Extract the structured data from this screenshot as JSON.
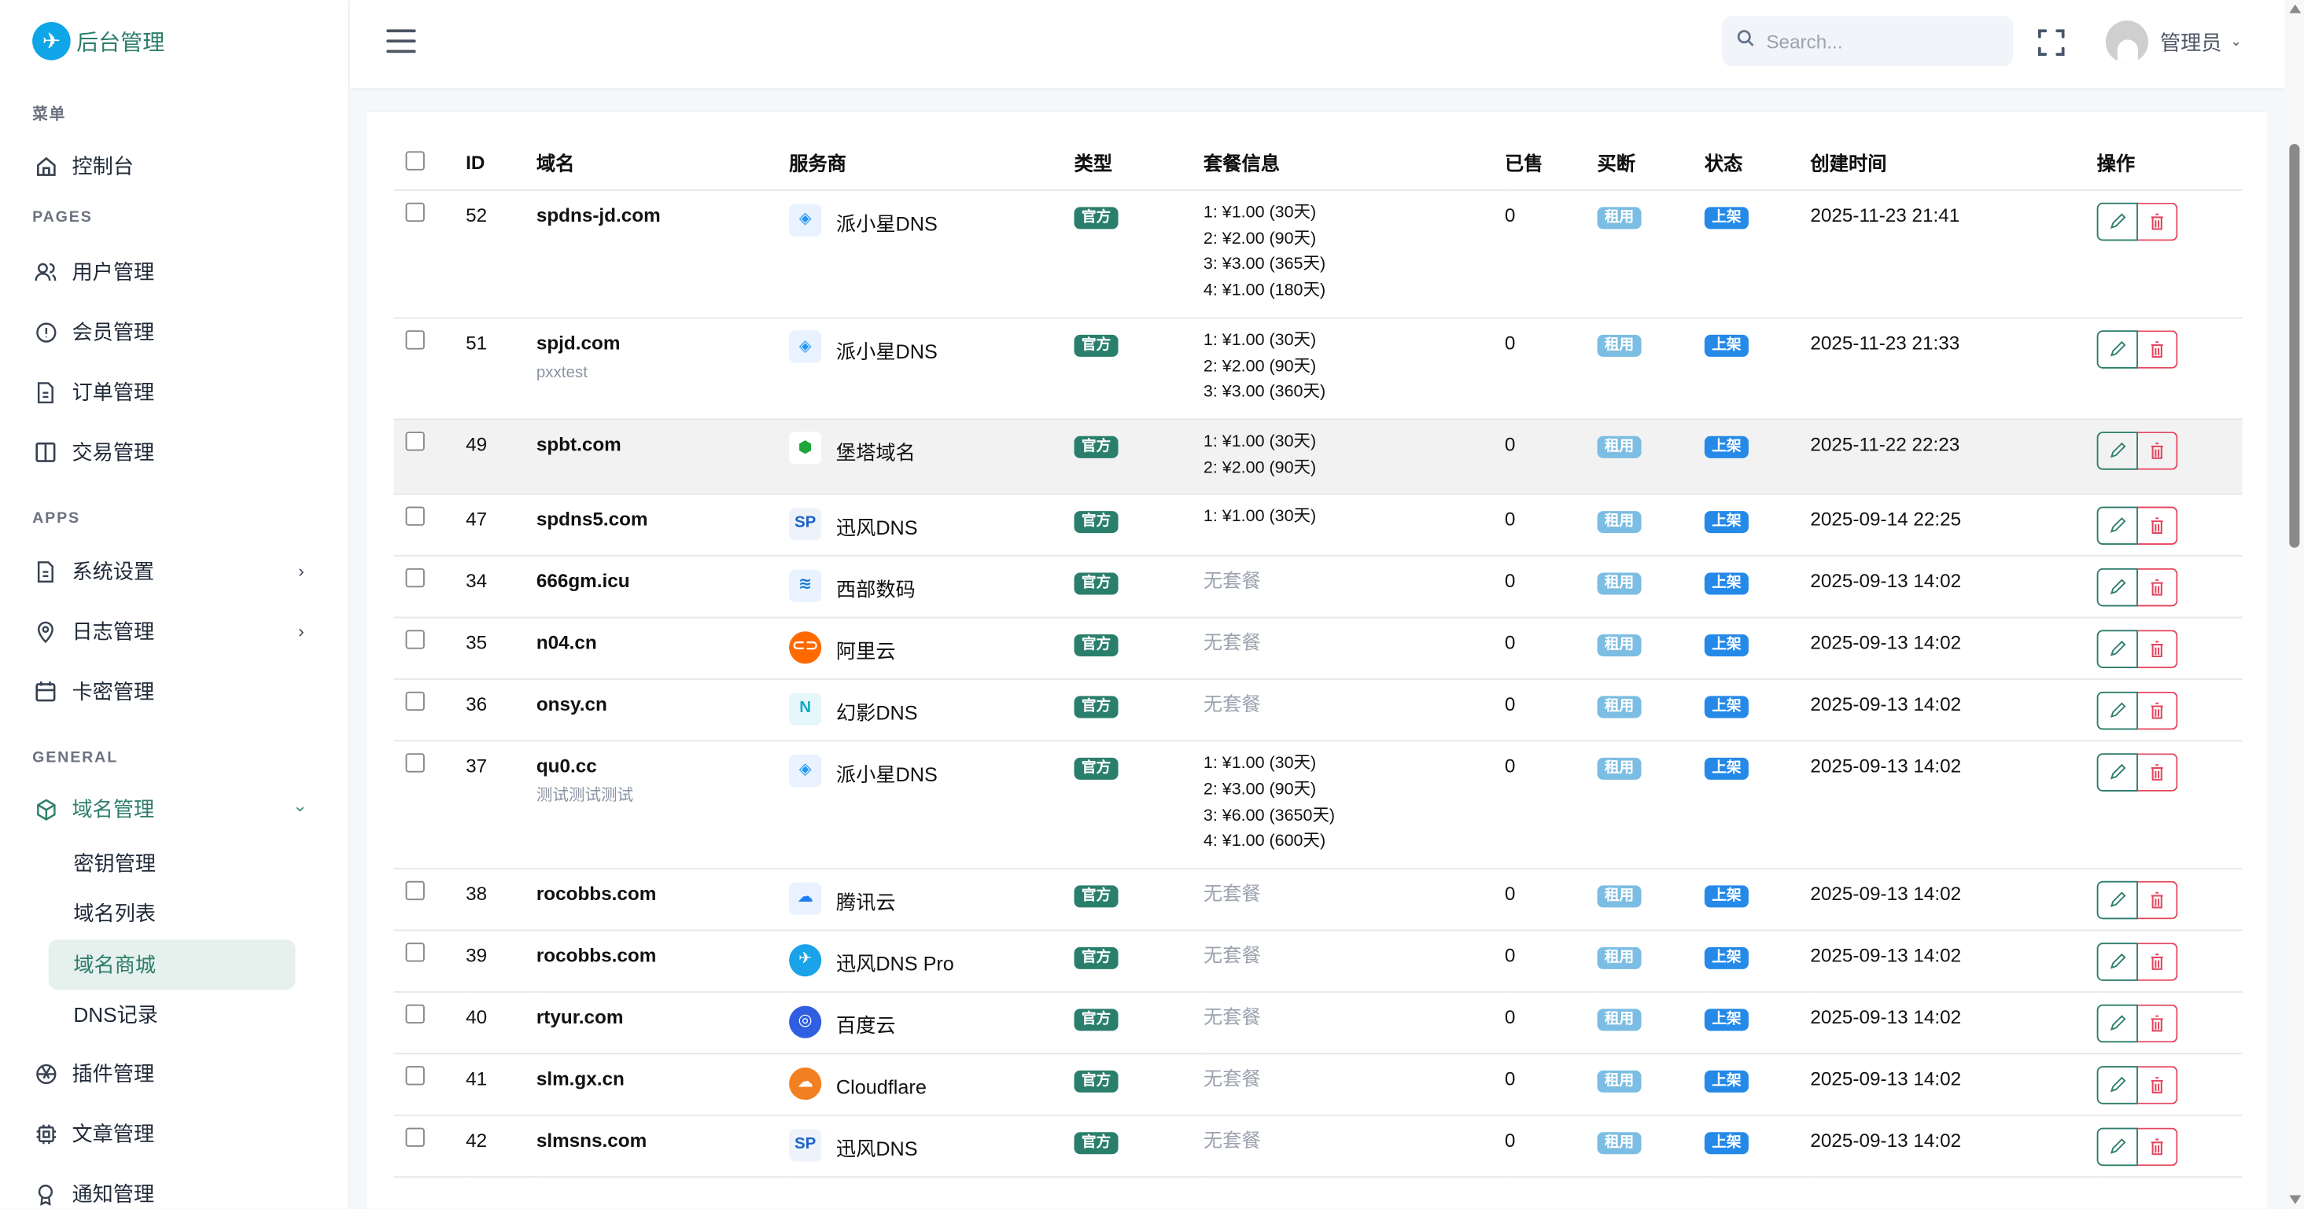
{
  "app": {
    "title": "后台管理"
  },
  "sidebar": {
    "section_menu": "菜单",
    "dashboard": "控制台",
    "section_pages": "PAGES",
    "users": "用户管理",
    "members": "会员管理",
    "orders": "订单管理",
    "trades": "交易管理",
    "section_apps": "APPS",
    "settings": "系统设置",
    "logs": "日志管理",
    "cards": "卡密管理",
    "section_general": "GENERAL",
    "domains": "域名管理",
    "domain_sub": [
      "密钥管理",
      "域名列表",
      "域名商城",
      "DNS记录"
    ],
    "domain_sub_active": 2,
    "plugins": "插件管理",
    "articles": "文章管理",
    "notices": "通知管理"
  },
  "header": {
    "search_placeholder": "Search...",
    "user_name": "管理员"
  },
  "colors": {
    "brand": "#2e7d6b",
    "official": "#2a7f6c",
    "rent": "#7cbde3",
    "listed": "#2589e8",
    "delete": "#e5455d"
  },
  "table": {
    "columns": [
      "ID",
      "域名",
      "服务商",
      "类型",
      "套餐信息",
      "已售",
      "买断",
      "状态",
      "创建时间",
      "操作"
    ],
    "no_package": "无套餐",
    "rows": [
      {
        "id": "52",
        "domain": "spdns-jd.com",
        "note": "",
        "provider": "派小星DNS",
        "provider_icon": "paixiaoxing-icon",
        "type": "官方",
        "packages": [
          "1: ¥1.00 (30天)",
          "2: ¥2.00 (90天)",
          "3: ¥3.00 (365天)",
          "4: ¥1.00 (180天)"
        ],
        "sold": "0",
        "buyout": "租用",
        "status": "上架",
        "created": "2025-11-23 21:41"
      },
      {
        "id": "51",
        "domain": "spjd.com",
        "note": "pxxtest",
        "provider": "派小星DNS",
        "provider_icon": "paixiaoxing-icon",
        "type": "官方",
        "packages": [
          "1: ¥1.00 (30天)",
          "2: ¥2.00 (90天)",
          "3: ¥3.00 (360天)"
        ],
        "sold": "0",
        "buyout": "租用",
        "status": "上架",
        "created": "2025-11-23 21:33"
      },
      {
        "id": "49",
        "domain": "spbt.com",
        "note": "",
        "provider": "堡塔域名",
        "provider_icon": "baota-icon",
        "type": "官方",
        "packages": [
          "1: ¥1.00 (30天)",
          "2: ¥2.00 (90天)"
        ],
        "sold": "0",
        "buyout": "租用",
        "status": "上架",
        "created": "2025-11-22 22:23",
        "highlighted": true
      },
      {
        "id": "47",
        "domain": "spdns5.com",
        "note": "",
        "provider": "迅风DNS",
        "provider_icon": "xunfeng-sp-icon",
        "type": "官方",
        "packages": [
          "1: ¥1.00 (30天)"
        ],
        "sold": "0",
        "buyout": "租用",
        "status": "上架",
        "created": "2025-09-14 22:25"
      },
      {
        "id": "34",
        "domain": "666gm.icu",
        "note": "",
        "provider": "西部数码",
        "provider_icon": "west-digital-icon",
        "type": "官方",
        "packages": [],
        "sold": "0",
        "buyout": "租用",
        "status": "上架",
        "created": "2025-09-13 14:02"
      },
      {
        "id": "35",
        "domain": "n04.cn",
        "note": "",
        "provider": "阿里云",
        "provider_icon": "aliyun-icon",
        "type": "官方",
        "packages": [],
        "sold": "0",
        "buyout": "租用",
        "status": "上架",
        "created": "2025-09-13 14:02"
      },
      {
        "id": "36",
        "domain": "onsy.cn",
        "note": "",
        "provider": "幻影DNS",
        "provider_icon": "huanying-icon",
        "type": "官方",
        "packages": [],
        "sold": "0",
        "buyout": "租用",
        "status": "上架",
        "created": "2025-09-13 14:02"
      },
      {
        "id": "37",
        "domain": "qu0.cc",
        "note": "测试测试测试",
        "provider": "派小星DNS",
        "provider_icon": "paixiaoxing-icon",
        "type": "官方",
        "packages": [
          "1: ¥1.00 (30天)",
          "2: ¥3.00 (90天)",
          "3: ¥6.00 (3650天)",
          "4: ¥1.00 (600天)"
        ],
        "sold": "0",
        "buyout": "租用",
        "status": "上架",
        "created": "2025-09-13 14:02"
      },
      {
        "id": "38",
        "domain": "rocobbs.com",
        "note": "",
        "provider": "腾讯云",
        "provider_icon": "tencent-cloud-icon",
        "type": "官方",
        "packages": [],
        "sold": "0",
        "buyout": "租用",
        "status": "上架",
        "created": "2025-09-13 14:02"
      },
      {
        "id": "39",
        "domain": "rocobbs.com",
        "note": "",
        "provider": "迅风DNS Pro",
        "provider_icon": "xunfeng-pro-icon",
        "type": "官方",
        "packages": [],
        "sold": "0",
        "buyout": "租用",
        "status": "上架",
        "created": "2025-09-13 14:02"
      },
      {
        "id": "40",
        "domain": "rtyur.com",
        "note": "",
        "provider": "百度云",
        "provider_icon": "baidu-cloud-icon",
        "type": "官方",
        "packages": [],
        "sold": "0",
        "buyout": "租用",
        "status": "上架",
        "created": "2025-09-13 14:02"
      },
      {
        "id": "41",
        "domain": "slm.gx.cn",
        "note": "",
        "provider": "Cloudflare",
        "provider_icon": "cloudflare-icon",
        "type": "官方",
        "packages": [],
        "sold": "0",
        "buyout": "租用",
        "status": "上架",
        "created": "2025-09-13 14:02"
      },
      {
        "id": "42",
        "domain": "slmsns.com",
        "note": "",
        "provider": "迅风DNS",
        "provider_icon": "xunfeng-sp-icon",
        "type": "官方",
        "packages": [],
        "sold": "0",
        "buyout": "租用",
        "status": "上架",
        "created": "2025-09-13 14:02"
      }
    ]
  }
}
